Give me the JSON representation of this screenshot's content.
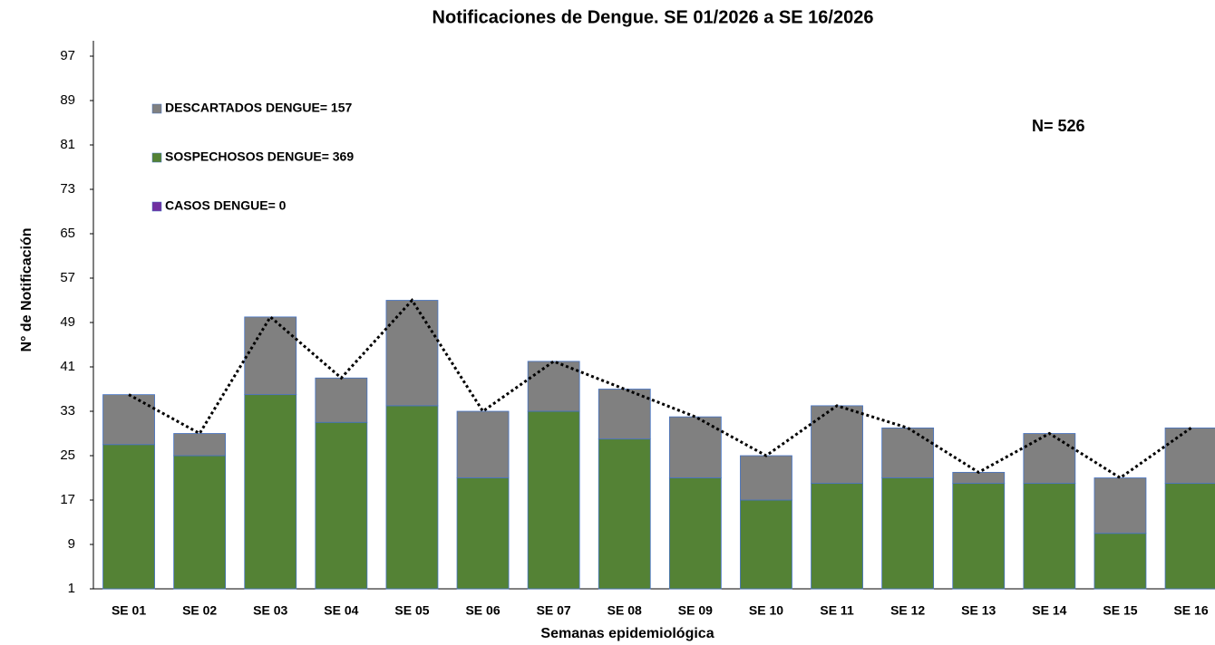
{
  "chart_data": {
    "type": "stacked_bar",
    "title": "Notificaciones de Dengue. SE 01/2026 a SE 16/2026",
    "x_label": "Semanas epidemiológica",
    "y_label": "N° de Notificación",
    "annotation": "N=  526",
    "categories": [
      "SE 01",
      "SE 02",
      "SE 03",
      "SE 04",
      "SE 05",
      "SE 06",
      "SE 07",
      "SE 08",
      "SE 09",
      "SE 10",
      "SE 11",
      "SE 12",
      "SE 13",
      "SE 14",
      "SE 15",
      "SE 16"
    ],
    "series": [
      {
        "name": "SOSPECHOSOS DENGUE= 369",
        "color": "#548235",
        "values": [
          26,
          24,
          35,
          30,
          33,
          20,
          32,
          27,
          20,
          16,
          19,
          20,
          19,
          19,
          10,
          19
        ]
      },
      {
        "name": "DESCARTADOS DENGUE= 157",
        "color": "#808080",
        "values": [
          9,
          4,
          14,
          8,
          19,
          12,
          9,
          9,
          11,
          8,
          14,
          9,
          2,
          9,
          10,
          10
        ]
      },
      {
        "name": "CASOS DENGUE= 0",
        "color": "#7030a0",
        "values": [
          0,
          0,
          0,
          0,
          0,
          0,
          0,
          0,
          0,
          0,
          0,
          0,
          0,
          0,
          0,
          0
        ]
      }
    ],
    "ylim": [
      1,
      97
    ],
    "yticks": [
      1,
      9,
      17,
      25,
      33,
      41,
      49,
      57,
      65,
      73,
      81,
      89,
      97
    ]
  }
}
